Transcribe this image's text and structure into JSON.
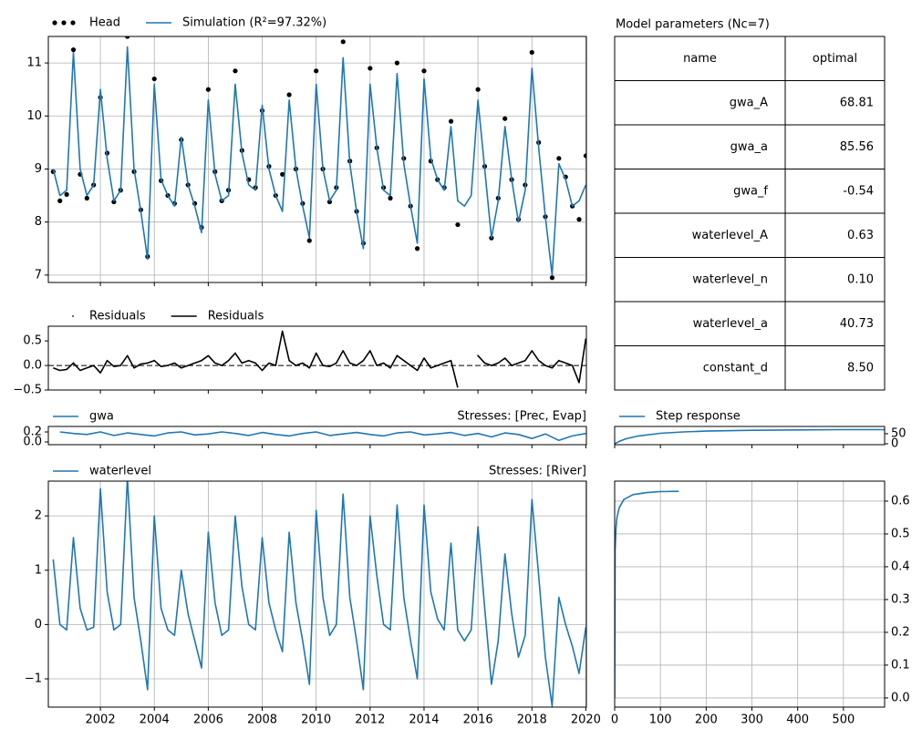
{
  "chart_data": [
    {
      "type": "line",
      "xlim": [
        2000.07,
        2020.02
      ],
      "xticks": [
        2002,
        2004,
        2006,
        2008,
        2010,
        2012,
        2014,
        2016,
        2018,
        2020
      ],
      "xtick_labels": false,
      "ylim": [
        6.86,
        11.5
      ],
      "yticks": [
        7,
        8,
        9,
        10,
        11
      ],
      "grid": true,
      "x": [
        2000.25,
        2000.5,
        2000.75,
        2001,
        2001.25,
        2001.5,
        2001.75,
        2002,
        2002.25,
        2002.5,
        2002.75,
        2003,
        2003.25,
        2003.5,
        2003.75,
        2004,
        2004.25,
        2004.5,
        2004.75,
        2005,
        2005.25,
        2005.5,
        2005.75,
        2006,
        2006.25,
        2006.5,
        2006.75,
        2007,
        2007.25,
        2007.5,
        2007.75,
        2008,
        2008.25,
        2008.5,
        2008.75,
        2009,
        2009.25,
        2009.5,
        2009.75,
        2010,
        2010.25,
        2010.5,
        2010.75,
        2011,
        2011.25,
        2011.5,
        2011.75,
        2012,
        2012.25,
        2012.5,
        2012.75,
        2013,
        2013.25,
        2013.5,
        2013.75,
        2014,
        2014.25,
        2014.5,
        2014.75,
        2015,
        2015.25,
        2015.5,
        2015.75,
        2016,
        2016.25,
        2016.5,
        2016.75,
        2017,
        2017.25,
        2017.5,
        2017.75,
        2018,
        2018.25,
        2018.5,
        2018.75,
        2019,
        2019.25,
        2019.5,
        2019.75,
        2020
      ],
      "series": [
        {
          "name": "Head",
          "type": "scatter",
          "color": "#000000",
          "values": [
            8.95,
            8.4,
            8.52,
            11.25,
            8.9,
            8.45,
            8.7,
            10.35,
            9.3,
            8.38,
            8.6,
            11.5,
            8.95,
            8.23,
            7.35,
            10.7,
            8.78,
            8.5,
            8.35,
            9.55,
            8.7,
            8.35,
            7.9,
            10.5,
            8.95,
            8.4,
            8.6,
            10.85,
            9.35,
            8.8,
            8.65,
            10.1,
            9.05,
            8.5,
            8.9,
            10.4,
            9.0,
            8.35,
            7.65,
            10.85,
            9.0,
            8.38,
            8.65,
            11.4,
            9.15,
            8.2,
            7.6,
            10.9,
            9.4,
            8.65,
            8.45,
            11.0,
            9.2,
            8.3,
            7.5,
            10.85,
            9.15,
            8.8,
            8.65,
            9.9,
            7.95,
            null,
            null,
            10.5,
            9.05,
            7.7,
            8.45,
            9.95,
            8.8,
            8.05,
            8.7,
            11.2,
            9.5,
            8.1,
            6.95,
            9.2,
            8.85,
            8.3,
            8.05,
            9.25
          ]
        },
        {
          "name": "Simulation (R²=97.32%)",
          "type": "line",
          "color": "#1f77b4",
          "values": [
            9.0,
            8.5,
            8.6,
            11.2,
            9.0,
            8.5,
            8.7,
            10.5,
            9.2,
            8.4,
            8.6,
            11.3,
            9.0,
            8.2,
            7.3,
            10.6,
            8.8,
            8.5,
            8.3,
            9.6,
            8.7,
            8.3,
            7.8,
            10.3,
            8.9,
            8.4,
            8.5,
            10.6,
            9.3,
            8.7,
            8.6,
            10.2,
            9.0,
            8.5,
            8.2,
            10.3,
            9.0,
            8.3,
            7.7,
            10.6,
            9.0,
            8.4,
            8.6,
            11.1,
            9.1,
            8.2,
            7.5,
            10.6,
            9.4,
            8.6,
            8.5,
            10.8,
            9.1,
            8.3,
            7.6,
            10.7,
            9.2,
            8.8,
            8.6,
            9.8,
            8.4,
            8.3,
            8.5,
            10.3,
            9.0,
            7.7,
            8.4,
            9.8,
            8.8,
            8.0,
            8.6,
            10.9,
            9.4,
            8.1,
            7.0,
            9.1,
            8.8,
            8.3,
            8.4,
            8.7
          ]
        }
      ]
    },
    {
      "type": "line",
      "xlim": [
        2000.07,
        2020.02
      ],
      "xticks": [
        2002,
        2004,
        2006,
        2008,
        2010,
        2012,
        2014,
        2016,
        2018,
        2020
      ],
      "xtick_labels": false,
      "ylim": [
        -0.5,
        0.8
      ],
      "yticks": [
        {
          "value": -0.5,
          "label": "−0.5"
        },
        {
          "value": 0,
          "label": "0.0"
        },
        0.5
      ],
      "grid": false,
      "hline": 0,
      "series": [
        {
          "name": "Residuals",
          "type": "scatter",
          "color": "#000000",
          "x": [
            2001,
            2004,
            2007,
            2010,
            2013,
            2016,
            2019
          ],
          "values": [
            0.05,
            0.1,
            0.25,
            0.25,
            0.2,
            0.2,
            0.1
          ]
        },
        {
          "name": "Residuals",
          "type": "line",
          "color": "#000000",
          "x": [
            2000.25,
            2000.5,
            2000.75,
            2001,
            2001.25,
            2001.5,
            2001.75,
            2002,
            2002.25,
            2002.5,
            2002.75,
            2003,
            2003.25,
            2003.5,
            2003.75,
            2004,
            2004.25,
            2004.5,
            2004.75,
            2005,
            2005.25,
            2005.5,
            2005.75,
            2006,
            2006.25,
            2006.5,
            2006.75,
            2007,
            2007.25,
            2007.5,
            2007.75,
            2008,
            2008.25,
            2008.5,
            2008.75,
            2009,
            2009.25,
            2009.5,
            2009.75,
            2010,
            2010.25,
            2010.5,
            2010.75,
            2011,
            2011.25,
            2011.5,
            2011.75,
            2012,
            2012.25,
            2012.5,
            2012.75,
            2013,
            2013.25,
            2013.5,
            2013.75,
            2014,
            2014.25,
            2014.5,
            2014.75,
            2015,
            2015.25,
            2015.5,
            2015.75,
            2016,
            2016.25,
            2016.5,
            2016.75,
            2017,
            2017.25,
            2017.5,
            2017.75,
            2018,
            2018.25,
            2018.5,
            2018.75,
            2019,
            2019.25,
            2019.5,
            2019.75,
            2020
          ],
          "values": [
            -0.05,
            -0.1,
            -0.08,
            0.05,
            -0.1,
            -0.05,
            0.0,
            -0.15,
            0.1,
            -0.02,
            0.0,
            0.2,
            -0.05,
            0.03,
            0.05,
            0.1,
            -0.02,
            0.0,
            0.05,
            -0.05,
            0.0,
            0.05,
            0.1,
            0.2,
            0.05,
            0.0,
            0.1,
            0.25,
            0.05,
            0.1,
            0.05,
            -0.1,
            0.05,
            0.0,
            0.7,
            0.1,
            0.0,
            0.05,
            -0.05,
            0.25,
            0.0,
            -0.02,
            0.05,
            0.3,
            0.05,
            0.0,
            0.1,
            0.3,
            0.0,
            0.05,
            -0.05,
            0.2,
            0.1,
            0.0,
            -0.1,
            0.15,
            -0.05,
            0.0,
            0.05,
            0.1,
            -0.45,
            null,
            null,
            0.2,
            0.05,
            0.0,
            0.05,
            0.15,
            0.0,
            0.05,
            0.1,
            0.3,
            0.1,
            0.0,
            -0.05,
            0.1,
            0.05,
            0.0,
            -0.35,
            0.55
          ]
        }
      ]
    },
    {
      "type": "line",
      "xlim": [
        2000.07,
        2020.02
      ],
      "xticks": [
        2002,
        2004,
        2006,
        2008,
        2010,
        2012,
        2014,
        2016,
        2018,
        2020
      ],
      "xtick_labels": false,
      "ylim": [
        -0.055,
        0.31
      ],
      "yticks": [
        {
          "value": 0,
          "label": "0.0"
        },
        0.2
      ],
      "grid": false,
      "annotation": "Stresses: [Prec, Evap]",
      "x": [
        2000.5,
        2001,
        2001.5,
        2002,
        2002.5,
        2003,
        2003.5,
        2004,
        2004.5,
        2005,
        2005.5,
        2006,
        2006.5,
        2007,
        2007.5,
        2008,
        2008.5,
        2009,
        2009.5,
        2010,
        2010.5,
        2011,
        2011.5,
        2012,
        2012.5,
        2013,
        2013.5,
        2014,
        2014.5,
        2015,
        2015.5,
        2016,
        2016.5,
        2017,
        2017.5,
        2018,
        2018.5,
        2019,
        2019.5,
        2020
      ],
      "series": [
        {
          "name": "gwa",
          "type": "line",
          "color": "#1f77b4",
          "values": [
            0.2,
            0.17,
            0.15,
            0.2,
            0.13,
            0.18,
            0.15,
            0.12,
            0.18,
            0.2,
            0.14,
            0.16,
            0.2,
            0.17,
            0.13,
            0.19,
            0.15,
            0.12,
            0.17,
            0.2,
            0.13,
            0.16,
            0.19,
            0.15,
            0.12,
            0.18,
            0.2,
            0.14,
            0.16,
            0.19,
            0.13,
            0.17,
            0.1,
            0.18,
            0.15,
            0.07,
            0.16,
            0.03,
            0.12,
            0.17
          ]
        }
      ]
    },
    {
      "type": "line",
      "xlim": [
        2000.07,
        2020.02
      ],
      "xticks": [
        2002,
        2004,
        2006,
        2008,
        2010,
        2012,
        2014,
        2016,
        2018,
        2020
      ],
      "xtick_labels": true,
      "ylim": [
        -1.52,
        2.64
      ],
      "yticks": [
        {
          "value": -1,
          "label": "−1"
        },
        0,
        1,
        2
      ],
      "grid": true,
      "annotation": "Stresses: [River]",
      "x": [
        2000.25,
        2000.5,
        2000.75,
        2001,
        2001.25,
        2001.5,
        2001.75,
        2002,
        2002.25,
        2002.5,
        2002.75,
        2003,
        2003.25,
        2003.5,
        2003.75,
        2004,
        2004.25,
        2004.5,
        2004.75,
        2005,
        2005.25,
        2005.5,
        2005.75,
        2006,
        2006.25,
        2006.5,
        2006.75,
        2007,
        2007.25,
        2007.5,
        2007.75,
        2008,
        2008.25,
        2008.5,
        2008.75,
        2009,
        2009.25,
        2009.5,
        2009.75,
        2010,
        2010.25,
        2010.5,
        2010.75,
        2011,
        2011.25,
        2011.5,
        2011.75,
        2012,
        2012.25,
        2012.5,
        2012.75,
        2013,
        2013.25,
        2013.5,
        2013.75,
        2014,
        2014.25,
        2014.5,
        2014.75,
        2015,
        2015.25,
        2015.5,
        2015.75,
        2016,
        2016.25,
        2016.5,
        2016.75,
        2017,
        2017.25,
        2017.5,
        2017.75,
        2018,
        2018.25,
        2018.5,
        2018.75,
        2019,
        2019.25,
        2019.5,
        2019.75,
        2020
      ],
      "series": [
        {
          "name": "waterlevel",
          "type": "line",
          "color": "#1f77b4",
          "values": [
            1.2,
            0.0,
            -0.1,
            1.6,
            0.3,
            -0.1,
            -0.05,
            2.5,
            0.6,
            -0.1,
            0.0,
            2.7,
            0.5,
            -0.3,
            -1.2,
            2.0,
            0.3,
            -0.1,
            -0.2,
            1.0,
            0.2,
            -0.3,
            -0.8,
            1.7,
            0.4,
            -0.2,
            -0.1,
            2.0,
            0.7,
            0.0,
            -0.1,
            1.6,
            0.4,
            -0.1,
            -0.5,
            1.7,
            0.4,
            -0.3,
            -1.1,
            2.1,
            0.5,
            -0.2,
            0.0,
            2.4,
            0.5,
            -0.3,
            -1.2,
            2.0,
            0.9,
            0.0,
            -0.1,
            2.2,
            0.5,
            -0.3,
            -1.0,
            2.2,
            0.6,
            0.1,
            -0.1,
            1.5,
            -0.1,
            -0.3,
            -0.1,
            1.8,
            0.3,
            -1.1,
            -0.3,
            1.3,
            0.2,
            -0.6,
            -0.2,
            2.3,
            0.9,
            -0.6,
            -1.5,
            0.5,
            0.0,
            -0.4,
            -0.9,
            -0.05
          ]
        }
      ]
    },
    {
      "type": "line",
      "xlim": [
        0,
        590
      ],
      "xticks": [
        0,
        100,
        200,
        300,
        400,
        500
      ],
      "xtick_labels": false,
      "yaxis_side": "right",
      "ylim": [
        -4.5,
        86
      ],
      "yticks": [
        0,
        50
      ],
      "grid": false,
      "x": [
        0,
        10,
        25,
        50,
        100,
        150,
        200,
        300,
        400,
        500,
        590
      ],
      "series": [
        {
          "name": "Step response",
          "type": "line",
          "color": "#1f77b4",
          "values": [
            0,
            12,
            25,
            38,
            52,
            59,
            63,
            67,
            69,
            70,
            70
          ]
        }
      ]
    },
    {
      "type": "line",
      "xlim": [
        0,
        590
      ],
      "xticks": [
        0,
        100,
        200,
        300,
        400,
        500
      ],
      "xtick_labels": true,
      "yaxis_side": "right",
      "ylim": [
        -0.028,
        0.661
      ],
      "yticks": [
        {
          "value": 0,
          "label": "0.0"
        },
        0.1,
        0.2,
        0.3,
        0.4,
        0.5,
        0.6
      ],
      "grid": true,
      "x": [
        0,
        1,
        3,
        5,
        10,
        20,
        40,
        70,
        100,
        140
      ],
      "series": [
        {
          "type": "line",
          "color": "#1f77b4",
          "values": [
            0,
            0.45,
            0.52,
            0.55,
            0.58,
            0.605,
            0.62,
            0.626,
            0.629,
            0.63
          ]
        }
      ]
    }
  ],
  "table": {
    "title": "Model parameters (Nc=7)",
    "columns": [
      "name",
      "optimal"
    ],
    "rows": [
      [
        "gwa_A",
        "68.81"
      ],
      [
        "gwa_a",
        "85.56"
      ],
      [
        "gwa_f",
        "-0.54"
      ],
      [
        "waterlevel_A",
        "0.63"
      ],
      [
        "waterlevel_n",
        "0.10"
      ],
      [
        "waterlevel_a",
        "40.73"
      ],
      [
        "constant_d",
        "8.50"
      ]
    ]
  }
}
